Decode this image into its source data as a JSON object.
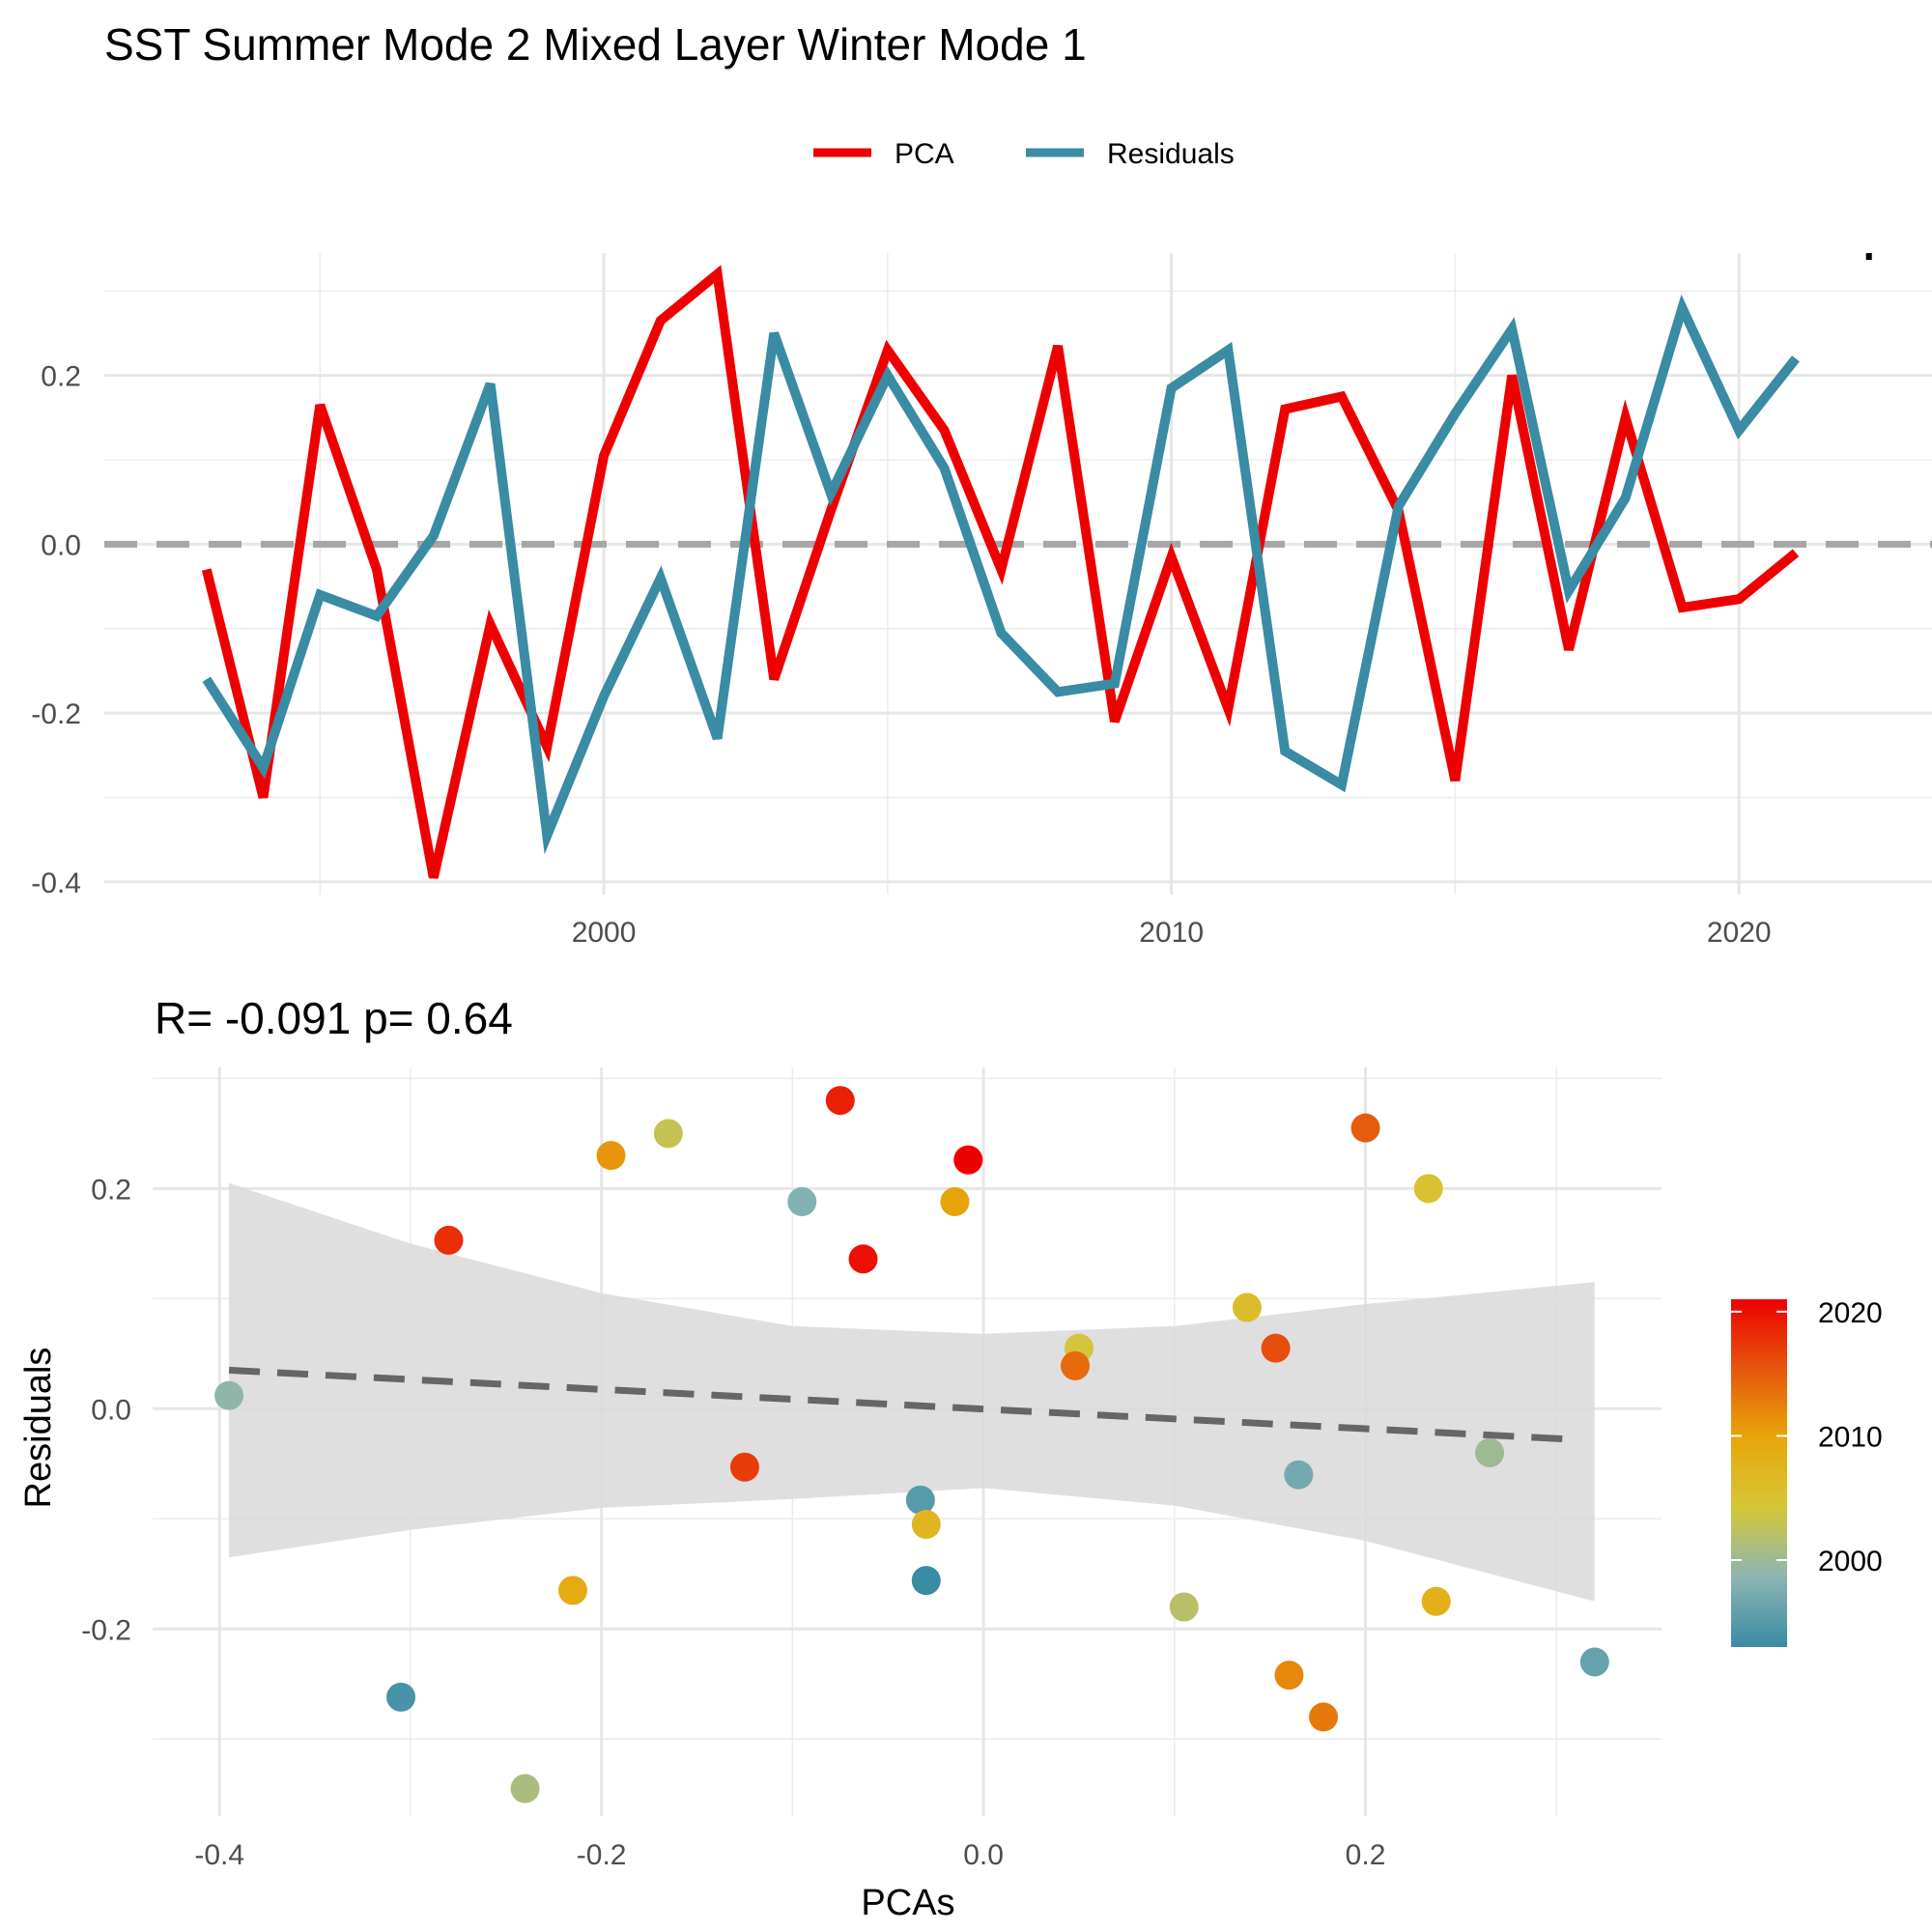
{
  "title": "SST Summer Mode 2 Mixed Layer Winter Mode 1",
  "colors": {
    "pca": "#EE0000",
    "residuals": "#3A8BA4",
    "zero_line": "#A6A6A6",
    "ribbon": "#D9D9D9",
    "fit_line": "#666666"
  },
  "chart_data": [
    {
      "type": "line",
      "xlabel": "",
      "ylabel": "",
      "xlim": [
        1991.2,
        2023.4
      ],
      "ylim": [
        -0.415,
        0.345
      ],
      "xticks": [
        2000,
        2010,
        2020
      ],
      "yticks": [
        -0.4,
        -0.2,
        0.0,
        0.2
      ],
      "ytick_labels": [
        "-0.4",
        "-0.2",
        "0.0",
        "0.2"
      ],
      "legend_position": "top",
      "zero_reference": 0,
      "clipped_label": "R= -0.091  p= 0.64",
      "x": [
        1993,
        1994,
        1995,
        1996,
        1997,
        1998,
        1999,
        2000,
        2001,
        2002,
        2003,
        2004,
        2005,
        2006,
        2007,
        2008,
        2009,
        2010,
        2011,
        2012,
        2013,
        2014,
        2015,
        2016,
        2017,
        2018,
        2019,
        2020,
        2021
      ],
      "series": [
        {
          "name": "PCA",
          "values": [
            -0.03,
            -0.3,
            0.165,
            -0.03,
            -0.395,
            -0.095,
            -0.24,
            0.105,
            0.265,
            0.32,
            -0.16,
            0.04,
            0.23,
            0.135,
            -0.03,
            0.235,
            -0.21,
            -0.015,
            -0.195,
            0.16,
            0.175,
            0.04,
            -0.28,
            0.2,
            -0.125,
            0.15,
            -0.075,
            -0.065,
            -0.01
          ]
        },
        {
          "name": "Residuals",
          "values": [
            -0.16,
            -0.265,
            -0.06,
            -0.085,
            0.01,
            0.19,
            -0.345,
            -0.18,
            -0.04,
            -0.23,
            0.25,
            0.06,
            0.2,
            0.09,
            -0.105,
            -0.175,
            -0.165,
            0.185,
            0.23,
            -0.245,
            -0.285,
            0.045,
            0.155,
            0.255,
            -0.055,
            0.055,
            0.28,
            0.135,
            0.22
          ]
        }
      ]
    },
    {
      "type": "scatter",
      "subtitle": "R= -0.091  p= 0.64",
      "xlabel": "PCAs",
      "ylabel": "Residuals",
      "xlim": [
        -0.435,
        0.355
      ],
      "ylim": [
        -0.37,
        0.31
      ],
      "xticks": [
        -0.4,
        -0.2,
        0.0,
        0.2
      ],
      "xtick_labels": [
        "-0.4",
        "-0.2",
        "0.0",
        "0.2"
      ],
      "yticks": [
        -0.2,
        0.0,
        0.2
      ],
      "ytick_labels": [
        "-0.2",
        "0.0",
        "0.2"
      ],
      "regression": {
        "x": [
          -0.395,
          0.31
        ],
        "y": [
          0.035,
          -0.028
        ]
      },
      "confidence_band": {
        "x": [
          -0.395,
          -0.3,
          -0.2,
          -0.1,
          0.0,
          0.1,
          0.2,
          0.32
        ],
        "upper": [
          0.205,
          0.15,
          0.105,
          0.075,
          0.068,
          0.075,
          0.095,
          0.115
        ],
        "lower": [
          -0.135,
          -0.11,
          -0.09,
          -0.082,
          -0.072,
          -0.088,
          -0.12,
          -0.175
        ]
      },
      "colorbar": {
        "title": "",
        "min": 1993,
        "max": 2021,
        "ticks": [
          2000,
          2010,
          2020
        ],
        "stops": [
          "#3A8BA4",
          "#8BB5B3",
          "#D6C638",
          "#E8A60A",
          "#E6560E",
          "#EE0000"
        ],
        "position": "right"
      },
      "points": [
        {
          "x": -0.395,
          "y": 0.012,
          "year": 1999
        },
        {
          "x": -0.305,
          "y": -0.262,
          "year": 1994
        },
        {
          "x": -0.28,
          "y": 0.153,
          "year": 2018
        },
        {
          "x": -0.24,
          "y": -0.345,
          "year": 2001
        },
        {
          "x": -0.215,
          "y": -0.165,
          "year": 2009
        },
        {
          "x": -0.195,
          "y": 0.23,
          "year": 2011
        },
        {
          "x": -0.165,
          "y": 0.25,
          "year": 2003
        },
        {
          "x": -0.125,
          "y": -0.053,
          "year": 2017
        },
        {
          "x": -0.095,
          "y": 0.188,
          "year": 1998
        },
        {
          "x": -0.075,
          "y": 0.28,
          "year": 2019
        },
        {
          "x": -0.063,
          "y": 0.136,
          "year": 2020
        },
        {
          "x": -0.033,
          "y": -0.083,
          "year": 1995
        },
        {
          "x": -0.03,
          "y": -0.105,
          "year": 2007
        },
        {
          "x": -0.03,
          "y": -0.156,
          "year": 1993
        },
        {
          "x": -0.015,
          "y": 0.188,
          "year": 2010
        },
        {
          "x": -0.008,
          "y": 0.226,
          "year": 2021
        },
        {
          "x": 0.05,
          "y": 0.055,
          "year": 2004
        },
        {
          "x": 0.048,
          "y": 0.039,
          "year": 2014
        },
        {
          "x": 0.105,
          "y": -0.18,
          "year": 2002
        },
        {
          "x": 0.138,
          "y": 0.092,
          "year": 2006
        },
        {
          "x": 0.153,
          "y": 0.055,
          "year": 2016
        },
        {
          "x": 0.16,
          "y": -0.242,
          "year": 2012
        },
        {
          "x": 0.165,
          "y": -0.06,
          "year": 1997
        },
        {
          "x": 0.178,
          "y": -0.28,
          "year": 2013
        },
        {
          "x": 0.2,
          "y": 0.255,
          "year": 2015
        },
        {
          "x": 0.233,
          "y": 0.2,
          "year": 2005
        },
        {
          "x": 0.237,
          "y": -0.175,
          "year": 2008
        },
        {
          "x": 0.265,
          "y": -0.04,
          "year": 2000
        },
        {
          "x": 0.32,
          "y": -0.23,
          "year": 1996
        }
      ]
    }
  ]
}
